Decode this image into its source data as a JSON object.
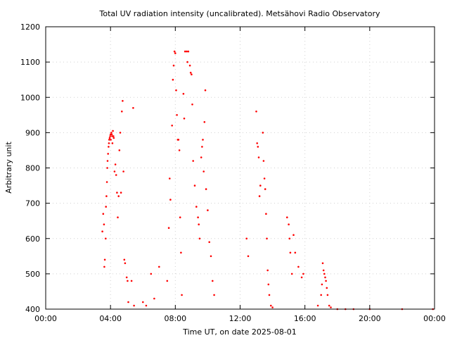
{
  "chart_data": {
    "type": "scatter",
    "title": "Total UV radiation intensity (uncalibrated). Metsähovi Radio Observatory",
    "xlabel": "Time UT, on date 2025-08-01",
    "ylabel": "Arbitrary unit",
    "xlim": [
      0,
      24
    ],
    "ylim": [
      400,
      1200
    ],
    "x_unit": "hours UT",
    "x_ticks": [
      0,
      4,
      8,
      12,
      16,
      20,
      24
    ],
    "x_tick_labels": [
      "00:00",
      "04:00",
      "08:00",
      "12:00",
      "16:00",
      "20:00",
      "00:00"
    ],
    "y_ticks": [
      400,
      500,
      600,
      700,
      800,
      900,
      1000,
      1100,
      1200
    ],
    "y_tick_labels": [
      "400",
      "500",
      "600",
      "700",
      "800",
      "900",
      "1000",
      "1100",
      "1200"
    ],
    "grid": true,
    "legend": false,
    "marker_color": "#ff0000",
    "series": [
      {
        "values": [
          [
            3.5,
            620
          ],
          [
            3.55,
            670
          ],
          [
            3.6,
            640
          ],
          [
            3.62,
            520
          ],
          [
            3.65,
            540
          ],
          [
            3.7,
            600
          ],
          [
            3.72,
            690
          ],
          [
            3.75,
            720
          ],
          [
            3.78,
            760
          ],
          [
            3.8,
            800
          ],
          [
            3.82,
            820
          ],
          [
            3.85,
            840
          ],
          [
            3.88,
            860
          ],
          [
            3.9,
            870
          ],
          [
            3.92,
            880
          ],
          [
            3.95,
            885
          ],
          [
            3.98,
            890
          ],
          [
            4.0,
            895
          ],
          [
            4.02,
            880
          ],
          [
            4.05,
            900
          ],
          [
            4.08,
            895
          ],
          [
            4.1,
            890
          ],
          [
            4.12,
            870
          ],
          [
            4.15,
            905
          ],
          [
            4.18,
            890
          ],
          [
            4.2,
            885
          ],
          [
            4.25,
            790
          ],
          [
            4.3,
            810
          ],
          [
            4.35,
            780
          ],
          [
            4.4,
            730
          ],
          [
            4.45,
            660
          ],
          [
            4.5,
            720
          ],
          [
            4.55,
            850
          ],
          [
            4.6,
            900
          ],
          [
            4.65,
            730
          ],
          [
            4.7,
            960
          ],
          [
            4.75,
            990
          ],
          [
            4.8,
            790
          ],
          [
            4.85,
            540
          ],
          [
            4.9,
            530
          ],
          [
            5.0,
            490
          ],
          [
            5.05,
            480
          ],
          [
            5.1,
            420
          ],
          [
            5.3,
            480
          ],
          [
            5.4,
            970
          ],
          [
            5.45,
            410
          ],
          [
            6.0,
            420
          ],
          [
            6.2,
            410
          ],
          [
            6.5,
            500
          ],
          [
            6.7,
            430
          ],
          [
            7.0,
            520
          ],
          [
            7.5,
            480
          ],
          [
            7.6,
            630
          ],
          [
            7.65,
            770
          ],
          [
            7.7,
            710
          ],
          [
            7.8,
            920
          ],
          [
            7.85,
            1050
          ],
          [
            7.9,
            1090
          ],
          [
            7.95,
            1130
          ],
          [
            8.0,
            1125
          ],
          [
            8.05,
            1020
          ],
          [
            8.1,
            950
          ],
          [
            8.15,
            880
          ],
          [
            8.2,
            880
          ],
          [
            8.25,
            850
          ],
          [
            8.3,
            660
          ],
          [
            8.35,
            560
          ],
          [
            8.4,
            440
          ],
          [
            8.5,
            1010
          ],
          [
            8.55,
            940
          ],
          [
            8.6,
            1130
          ],
          [
            8.7,
            1130
          ],
          [
            8.75,
            1100
          ],
          [
            8.8,
            1130
          ],
          [
            8.9,
            1090
          ],
          [
            8.95,
            1070
          ],
          [
            9.0,
            1065
          ],
          [
            9.05,
            980
          ],
          [
            9.1,
            820
          ],
          [
            9.2,
            750
          ],
          [
            9.3,
            690
          ],
          [
            9.4,
            660
          ],
          [
            9.45,
            640
          ],
          [
            9.5,
            600
          ],
          [
            9.6,
            830
          ],
          [
            9.65,
            860
          ],
          [
            9.7,
            880
          ],
          [
            9.75,
            790
          ],
          [
            9.8,
            930
          ],
          [
            9.85,
            1020
          ],
          [
            9.9,
            740
          ],
          [
            10.0,
            680
          ],
          [
            10.1,
            590
          ],
          [
            10.2,
            550
          ],
          [
            10.3,
            480
          ],
          [
            10.4,
            440
          ],
          [
            12.4,
            600
          ],
          [
            12.5,
            550
          ],
          [
            13.0,
            960
          ],
          [
            13.05,
            870
          ],
          [
            13.1,
            860
          ],
          [
            13.15,
            830
          ],
          [
            13.2,
            720
          ],
          [
            13.25,
            750
          ],
          [
            13.4,
            900
          ],
          [
            13.45,
            820
          ],
          [
            13.5,
            770
          ],
          [
            13.55,
            740
          ],
          [
            13.6,
            670
          ],
          [
            13.65,
            600
          ],
          [
            13.7,
            510
          ],
          [
            13.75,
            470
          ],
          [
            13.8,
            440
          ],
          [
            13.9,
            410
          ],
          [
            14.0,
            405
          ],
          [
            14.9,
            660
          ],
          [
            15.0,
            640
          ],
          [
            15.05,
            600
          ],
          [
            15.1,
            560
          ],
          [
            15.2,
            500
          ],
          [
            15.3,
            610
          ],
          [
            15.4,
            560
          ],
          [
            15.6,
            520
          ],
          [
            15.8,
            490
          ],
          [
            15.9,
            500
          ],
          [
            16.8,
            410
          ],
          [
            17.0,
            440
          ],
          [
            17.05,
            470
          ],
          [
            17.1,
            530
          ],
          [
            17.15,
            510
          ],
          [
            17.2,
            500
          ],
          [
            17.25,
            490
          ],
          [
            17.3,
            480
          ],
          [
            17.35,
            460
          ],
          [
            17.4,
            440
          ],
          [
            17.5,
            410
          ],
          [
            17.6,
            405
          ],
          [
            18.0,
            400
          ],
          [
            18.5,
            400
          ],
          [
            19.0,
            400
          ],
          [
            20.0,
            400
          ],
          [
            22.0,
            400
          ],
          [
            23.9,
            400
          ]
        ]
      }
    ]
  }
}
